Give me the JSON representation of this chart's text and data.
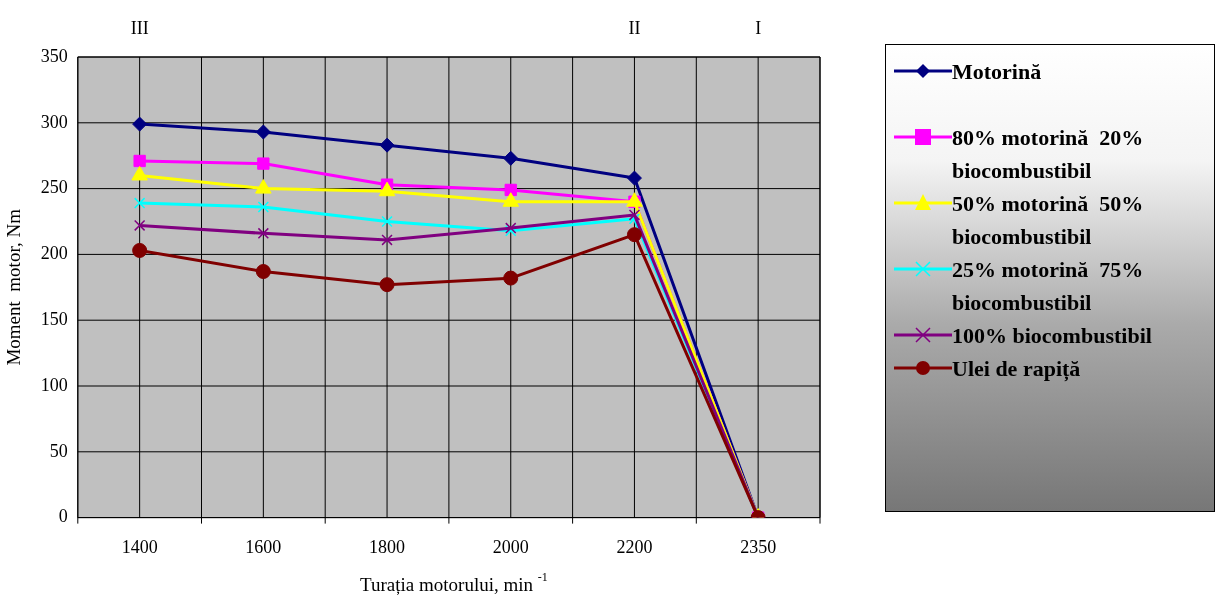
{
  "chart_data": {
    "type": "line",
    "xlabel": "Turația motorului, min $^{-1}$",
    "ylabel": "Moment  motor, Nm",
    "categories": [
      "1400",
      "1600",
      "1800",
      "2000",
      "2200",
      "2350"
    ],
    "series": [
      {
        "name": "Motorină",
        "color": "#000080",
        "marker": "diamond",
        "values": [
          299,
          293,
          283,
          273,
          258,
          0
        ]
      },
      {
        "name": "80% motorină  20% biocombustibil",
        "color": "#ff00ff",
        "marker": "square",
        "values": [
          271,
          269,
          253,
          249,
          240,
          0
        ]
      },
      {
        "name": "50% motorină  50% biocombustibil",
        "color": "#ffff00",
        "marker": "triangle",
        "values": [
          260,
          250,
          248,
          240,
          240,
          0
        ]
      },
      {
        "name": "25% motorină  75% biocombustibil",
        "color": "#00ffff",
        "marker": "cross",
        "values": [
          239,
          236,
          225,
          218,
          227,
          0
        ]
      },
      {
        "name": "100% biocombustibil",
        "color": "#800080",
        "marker": "cross",
        "values": [
          222,
          216,
          211,
          220,
          230,
          0
        ]
      },
      {
        "name": "Ulei de rapiță",
        "color": "#800000",
        "marker": "circle",
        "values": [
          203,
          187,
          177,
          182,
          215,
          0
        ]
      }
    ],
    "ylim": [
      0,
      350
    ],
    "yticks": [
      0,
      50,
      100,
      150,
      200,
      250,
      300,
      350
    ],
    "grid": true,
    "legend": "right",
    "annotations": [
      "III",
      "II",
      "I"
    ]
  }
}
